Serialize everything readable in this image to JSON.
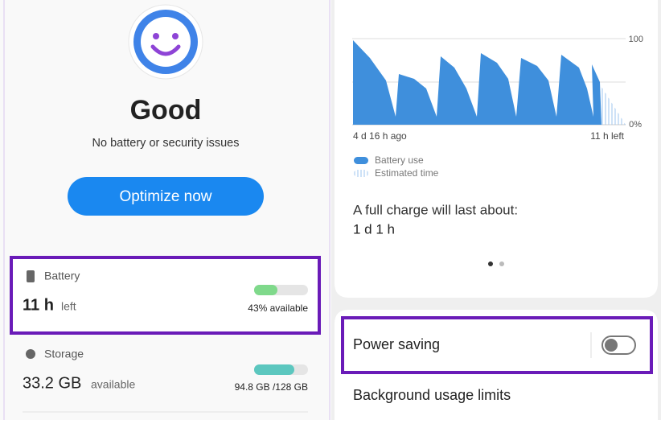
{
  "left": {
    "status_title": "Good",
    "status_subtitle": "No battery or security issues",
    "optimize_button": "Optimize now",
    "battery": {
      "label": "Battery",
      "value": "11 h",
      "unit": "left",
      "detail": "43% available"
    },
    "storage": {
      "label": "Storage",
      "value": "33.2 GB",
      "unit": "available",
      "detail": "94.8 GB /128 GB"
    }
  },
  "right": {
    "chart": {
      "y_top_label": "100",
      "y_bottom_label": "0%",
      "x_start_label": "4 d 16 h ago",
      "x_end_label": "11 h left",
      "legend": [
        "Battery use",
        "Estimated time"
      ]
    },
    "full_charge": {
      "label": "A full charge will last about:",
      "value": "1 d 1 h"
    },
    "power_saving": "Power saving",
    "background_limits": "Background usage limits"
  }
}
